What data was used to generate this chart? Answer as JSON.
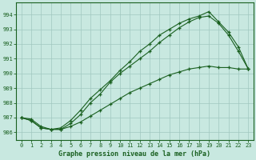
{
  "title": "Graphe pression niveau de la mer (hPa)",
  "bg_color": "#c8e8e0",
  "grid_color": "#a0c8c0",
  "line_color": "#1a6020",
  "xlim": [
    -0.5,
    23.5
  ],
  "ylim": [
    985.5,
    994.8
  ],
  "yticks": [
    986,
    987,
    988,
    989,
    990,
    991,
    992,
    993,
    994
  ],
  "xticks": [
    0,
    1,
    2,
    3,
    4,
    5,
    6,
    7,
    8,
    9,
    10,
    11,
    12,
    13,
    14,
    15,
    16,
    17,
    18,
    19,
    20,
    21,
    22,
    23
  ],
  "line1": {
    "x": [
      0,
      1,
      2,
      3,
      4,
      5,
      6,
      7,
      8,
      9,
      10,
      11,
      12,
      13,
      14,
      15,
      16,
      17,
      18,
      19,
      20,
      21,
      22,
      23
    ],
    "y": [
      987.0,
      986.9,
      986.4,
      986.2,
      986.2,
      986.4,
      986.7,
      987.1,
      987.5,
      987.9,
      988.3,
      988.7,
      989.0,
      989.3,
      989.6,
      989.9,
      990.1,
      990.3,
      990.4,
      990.5,
      990.4,
      990.4,
      990.3,
      990.3
    ]
  },
  "line2": {
    "x": [
      0,
      1,
      2,
      3,
      4,
      5,
      6,
      7,
      8,
      9,
      10,
      11,
      12,
      13,
      14,
      15,
      16,
      17,
      18,
      19,
      20,
      21,
      22,
      23
    ],
    "y": [
      987.0,
      986.8,
      986.3,
      986.2,
      986.2,
      986.6,
      987.2,
      988.0,
      988.6,
      989.4,
      990.0,
      990.5,
      991.0,
      991.5,
      992.1,
      992.6,
      993.1,
      993.5,
      993.8,
      993.9,
      993.4,
      992.6,
      991.5,
      990.3
    ]
  },
  "line3": {
    "x": [
      0,
      1,
      2,
      3,
      4,
      5,
      6,
      7,
      8,
      9,
      10,
      11,
      12,
      13,
      14,
      15,
      16,
      17,
      18,
      19,
      20,
      21,
      22,
      23
    ],
    "y": [
      987.0,
      986.8,
      986.3,
      986.2,
      986.3,
      986.8,
      987.5,
      988.3,
      988.9,
      989.5,
      990.2,
      990.8,
      991.5,
      992.0,
      992.6,
      993.0,
      993.4,
      993.7,
      993.9,
      994.2,
      993.5,
      992.8,
      991.8,
      990.3
    ]
  }
}
